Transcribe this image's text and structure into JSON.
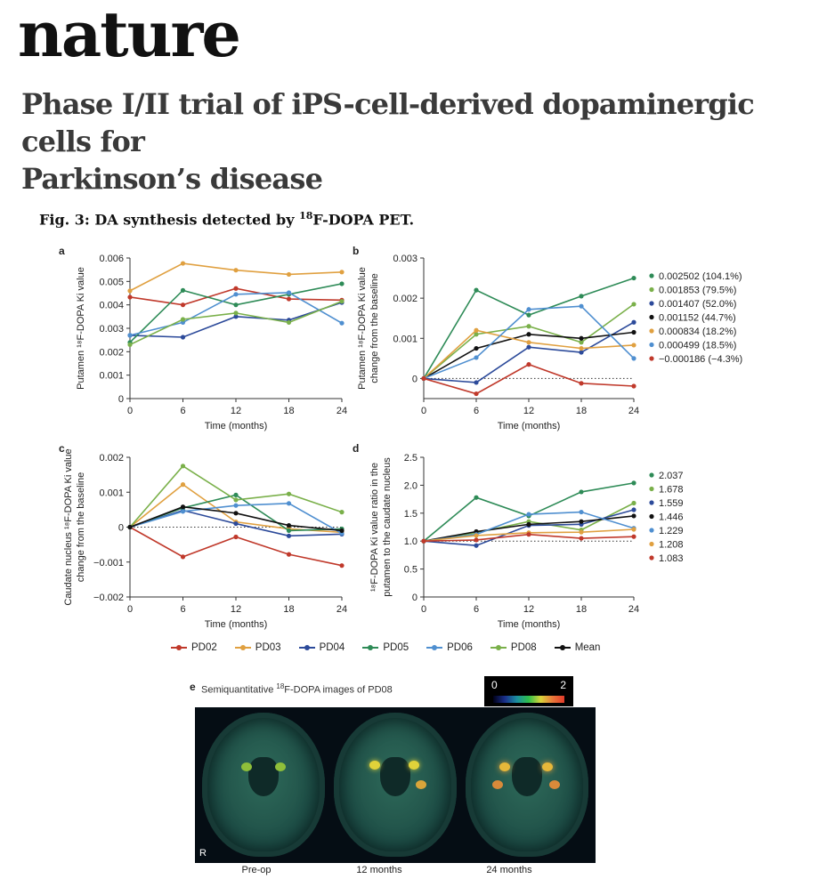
{
  "masthead": "nature",
  "article_title_line1": "Phase I/II trial of iPS-cell-derived dopaminergic cells for",
  "article_title_line2": "Parkinson’s disease",
  "figure_title_pre": "Fig. 3: DA synthesis detected by ",
  "figure_title_sup": "18",
  "figure_title_post": "F-DOPA PET.",
  "colors": {
    "PD02": "#c0392b",
    "PD03": "#e0a040",
    "PD04": "#2c4a9a",
    "PD05": "#2e8b57",
    "PD06": "#4f8fd0",
    "PD08": "#7ab04a",
    "Mean": "#111111"
  },
  "legend": [
    "PD02",
    "PD03",
    "PD04",
    "PD05",
    "PD06",
    "PD08",
    "Mean"
  ],
  "chart_data": [
    {
      "panel": "a",
      "type": "line",
      "x": [
        0,
        6,
        12,
        18,
        24
      ],
      "xlabel": "Time (months)",
      "ylabel": "Putamen ¹⁸F-DOPA Ki value",
      "ylim": [
        0,
        0.006
      ],
      "yticks": [
        "0",
        "0.001",
        "0.002",
        "0.003",
        "0.004",
        "0.005",
        "0.006"
      ],
      "series": [
        {
          "name": "PD02",
          "values": [
            0.00433,
            0.004,
            0.0047,
            0.00425,
            0.0042
          ]
        },
        {
          "name": "PD03",
          "values": [
            0.0046,
            0.00577,
            0.00548,
            0.0053,
            0.0054
          ]
        },
        {
          "name": "PD04",
          "values": [
            0.0027,
            0.00262,
            0.0035,
            0.00335,
            0.0041
          ]
        },
        {
          "name": "PD05",
          "values": [
            0.0024,
            0.00462,
            0.004,
            0.00445,
            0.0049
          ]
        },
        {
          "name": "PD06",
          "values": [
            0.0027,
            0.00325,
            0.00445,
            0.00452,
            0.00322
          ]
        },
        {
          "name": "PD08",
          "values": [
            0.0023,
            0.00338,
            0.00365,
            0.00325,
            0.00415
          ]
        }
      ]
    },
    {
      "panel": "b",
      "type": "line",
      "x": [
        0,
        6,
        12,
        18,
        24
      ],
      "xlabel": "Time (months)",
      "ylabel": "Putamen ¹⁸F-DOPA Ki value change from the baseline",
      "ylim": [
        -0.0005,
        0.003
      ],
      "yticks": [
        "0",
        "0.001",
        "0.002",
        "0.003"
      ],
      "reference_line": 0,
      "series": [
        {
          "name": "PD05",
          "values": [
            0,
            0.0022,
            0.00158,
            0.00205,
            0.0025
          ],
          "end_label": "0.002502 (104.1%)"
        },
        {
          "name": "PD08",
          "values": [
            0,
            0.0011,
            0.0013,
            0.0009,
            0.00185
          ],
          "end_label": "0.001853 (79.5%)"
        },
        {
          "name": "PD04",
          "values": [
            0,
            -0.0001,
            0.00078,
            0.00065,
            0.0014
          ],
          "end_label": "0.001407 (52.0%)"
        },
        {
          "name": "Mean",
          "values": [
            0,
            0.00075,
            0.0011,
            0.001,
            0.00115
          ],
          "end_label": "0.001152 (44.7%)"
        },
        {
          "name": "PD03",
          "values": [
            0,
            0.0012,
            0.0009,
            0.00075,
            0.00083
          ],
          "end_label": "0.000834 (18.2%)"
        },
        {
          "name": "PD06",
          "values": [
            0,
            0.00052,
            0.00172,
            0.0018,
            0.0005
          ],
          "end_label": "0.000499 (18.5%)"
        },
        {
          "name": "PD02",
          "values": [
            0,
            -0.00038,
            0.00035,
            -0.00012,
            -0.00019
          ],
          "end_label": "−0.000186 (−4.3%)"
        }
      ]
    },
    {
      "panel": "c",
      "type": "line",
      "x": [
        0,
        6,
        12,
        18,
        24
      ],
      "xlabel": "Time (months)",
      "ylabel": "Caudate nucleus ¹⁸F-DOPA Ki value change from the baseline",
      "ylim": [
        -0.002,
        0.002
      ],
      "yticks": [
        "−0.002",
        "−0.001",
        "0",
        "0.001",
        "0.002"
      ],
      "reference_line": 0,
      "series": [
        {
          "name": "PD02",
          "values": [
            0,
            -0.00085,
            -0.00028,
            -0.00078,
            -0.0011
          ]
        },
        {
          "name": "PD03",
          "values": [
            0,
            0.00122,
            0.00015,
            -5e-05,
            -0.00015
          ]
        },
        {
          "name": "PD04",
          "values": [
            0,
            0.00048,
            0.0001,
            -0.00025,
            -0.0002
          ]
        },
        {
          "name": "PD05",
          "values": [
            0,
            0.00055,
            0.00092,
            -0.0001,
            -5e-05
          ]
        },
        {
          "name": "PD06",
          "values": [
            0,
            0.00045,
            0.00062,
            0.00068,
            -0.00018
          ]
        },
        {
          "name": "PD08",
          "values": [
            0,
            0.00175,
            0.00078,
            0.00095,
            0.00043
          ]
        },
        {
          "name": "Mean",
          "values": [
            0,
            0.00058,
            0.0004,
            5e-05,
            -0.0001
          ]
        }
      ]
    },
    {
      "panel": "d",
      "type": "line",
      "x": [
        0,
        6,
        12,
        18,
        24
      ],
      "xlabel": "Time (months)",
      "ylabel": "¹⁸F-DOPA Ki value ratio in the putamen to the caudate nucleus",
      "ylim": [
        0,
        2.5
      ],
      "yticks": [
        "0",
        "0.5",
        "1.0",
        "1.5",
        "2.0",
        "2.5"
      ],
      "reference_line": 1.0,
      "series": [
        {
          "name": "PD05",
          "values": [
            1.0,
            1.78,
            1.45,
            1.88,
            2.04
          ],
          "end_label": "2.037"
        },
        {
          "name": "PD08",
          "values": [
            1.0,
            1.15,
            1.35,
            1.2,
            1.68
          ],
          "end_label": "1.678"
        },
        {
          "name": "PD04",
          "values": [
            1.0,
            0.92,
            1.28,
            1.3,
            1.56
          ],
          "end_label": "1.559"
        },
        {
          "name": "Mean",
          "values": [
            1.0,
            1.17,
            1.3,
            1.35,
            1.45
          ],
          "end_label": "1.446"
        },
        {
          "name": "PD06",
          "values": [
            1.0,
            1.12,
            1.48,
            1.52,
            1.23
          ],
          "end_label": "1.229"
        },
        {
          "name": "PD03",
          "values": [
            1.0,
            1.1,
            1.15,
            1.16,
            1.21
          ],
          "end_label": "1.208"
        },
        {
          "name": "PD02",
          "values": [
            1.0,
            1.02,
            1.12,
            1.05,
            1.08
          ],
          "end_label": "1.083"
        }
      ]
    }
  ],
  "panel_e": {
    "label": "e",
    "title_pre": "Semiquantitative ",
    "title_sup": "18",
    "title_post": "F-DOPA images of PD08",
    "colorbar_min": "0",
    "colorbar_max": "2",
    "orientation_letter": "R",
    "images": [
      "Pre-op",
      "12 months",
      "24 months"
    ]
  }
}
